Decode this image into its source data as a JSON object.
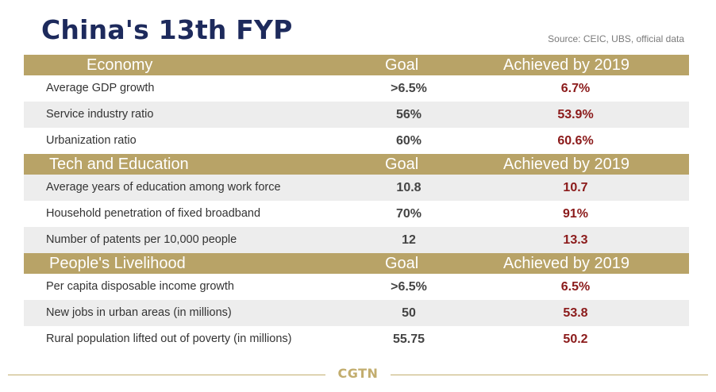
{
  "title": "China's 13th FYP",
  "source": "Source: CEIC, UBS, official data",
  "logo": "CGTN",
  "colors": {
    "title": "#1d2a5c",
    "header_band": "#b8a367",
    "achieved_value": "#8b1a1a",
    "row_shade": "#ededed",
    "footer": "#c2ad6e"
  },
  "sections": [
    {
      "title": "Economy",
      "goal_header": "Goal",
      "achieved_header": "Achieved by 2019",
      "rows": [
        {
          "label": "Average GDP growth",
          "goal": ">6.5%",
          "achieved": "6.7%"
        },
        {
          "label": "Service industry ratio",
          "goal": "56%",
          "achieved": "53.9%"
        },
        {
          "label": "Urbanization ratio",
          "goal": "60%",
          "achieved": "60.6%"
        }
      ]
    },
    {
      "title": "Tech and Education",
      "goal_header": "Goal",
      "achieved_header": "Achieved by 2019",
      "rows": [
        {
          "label": "Average years of education among work force",
          "goal": "10.8",
          "achieved": "10.7"
        },
        {
          "label": "Household penetration of fixed broadband",
          "goal": "70%",
          "achieved": "91%"
        },
        {
          "label": "Number of patents per 10,000 people",
          "goal": "12",
          "achieved": "13.3"
        }
      ]
    },
    {
      "title": "People's Livelihood",
      "goal_header": "Goal",
      "achieved_header": "Achieved by 2019",
      "rows": [
        {
          "label": "Per capita disposable income growth",
          "goal": ">6.5%",
          "achieved": "6.5%"
        },
        {
          "label": "New jobs in urban areas (in millions)",
          "goal": "50",
          "achieved": "53.8"
        },
        {
          "label": "Rural population lifted out of poverty (in millions)",
          "goal": "55.75",
          "achieved": "50.2"
        }
      ]
    }
  ],
  "chart_data": {
    "type": "table",
    "title": "China's 13th FYP",
    "columns": [
      "",
      "Goal",
      "Achieved by 2019"
    ],
    "groups": [
      {
        "name": "Economy",
        "rows": [
          [
            "Average GDP growth",
            ">6.5%",
            "6.7%"
          ],
          [
            "Service industry ratio",
            "56%",
            "53.9%"
          ],
          [
            "Urbanization ratio",
            "60%",
            "60.6%"
          ]
        ]
      },
      {
        "name": "Tech and Education",
        "rows": [
          [
            "Average years of education among work force",
            "10.8",
            "10.7"
          ],
          [
            "Household penetration of fixed broadband",
            "70%",
            "91%"
          ],
          [
            "Number of patents per 10,000 people",
            "12",
            "13.3"
          ]
        ]
      },
      {
        "name": "People's Livelihood",
        "rows": [
          [
            "Per capita disposable income growth",
            ">6.5%",
            "6.5%"
          ],
          [
            "New jobs in urban areas (in millions)",
            "50",
            "53.8"
          ],
          [
            "Rural population lifted out of poverty (in millions)",
            "55.75",
            "50.2"
          ]
        ]
      }
    ]
  }
}
